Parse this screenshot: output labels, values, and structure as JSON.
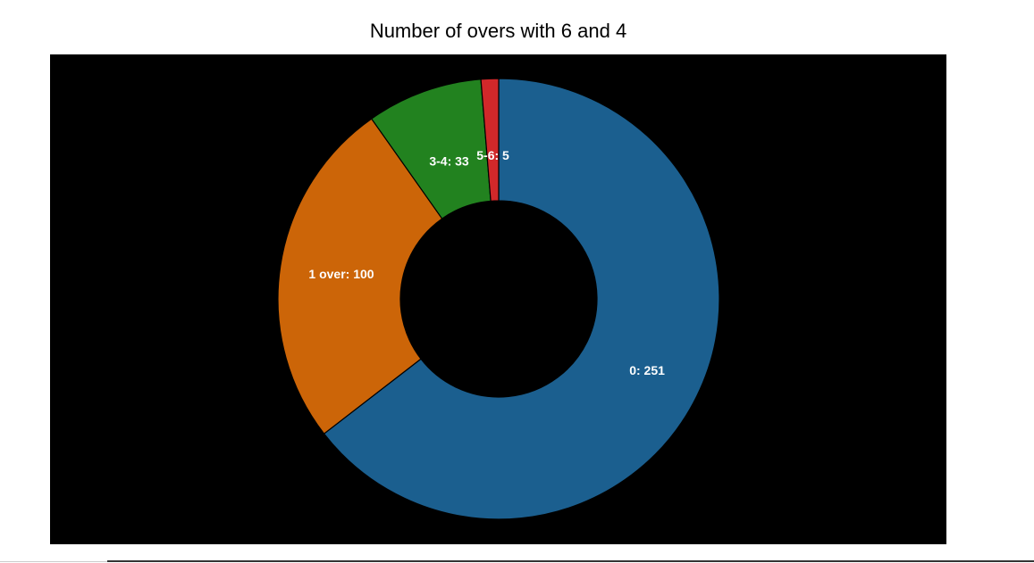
{
  "chart_data": {
    "type": "pie",
    "donut": true,
    "title": "Number of overs with 6 and 4",
    "categories": [
      "0",
      "1 over",
      "3-4",
      "5-6"
    ],
    "values": [
      251,
      100,
      33,
      5
    ],
    "labels": [
      "0: 251",
      "1 over: 100",
      "3-4: 33",
      "5-6: 5"
    ],
    "colors": [
      "#1b5f8f",
      "#cc6508",
      "#22821f",
      "#d1282a"
    ],
    "background": "#000000",
    "start_angle": "12 o'clock",
    "direction": "clockwise",
    "legend": "none"
  }
}
